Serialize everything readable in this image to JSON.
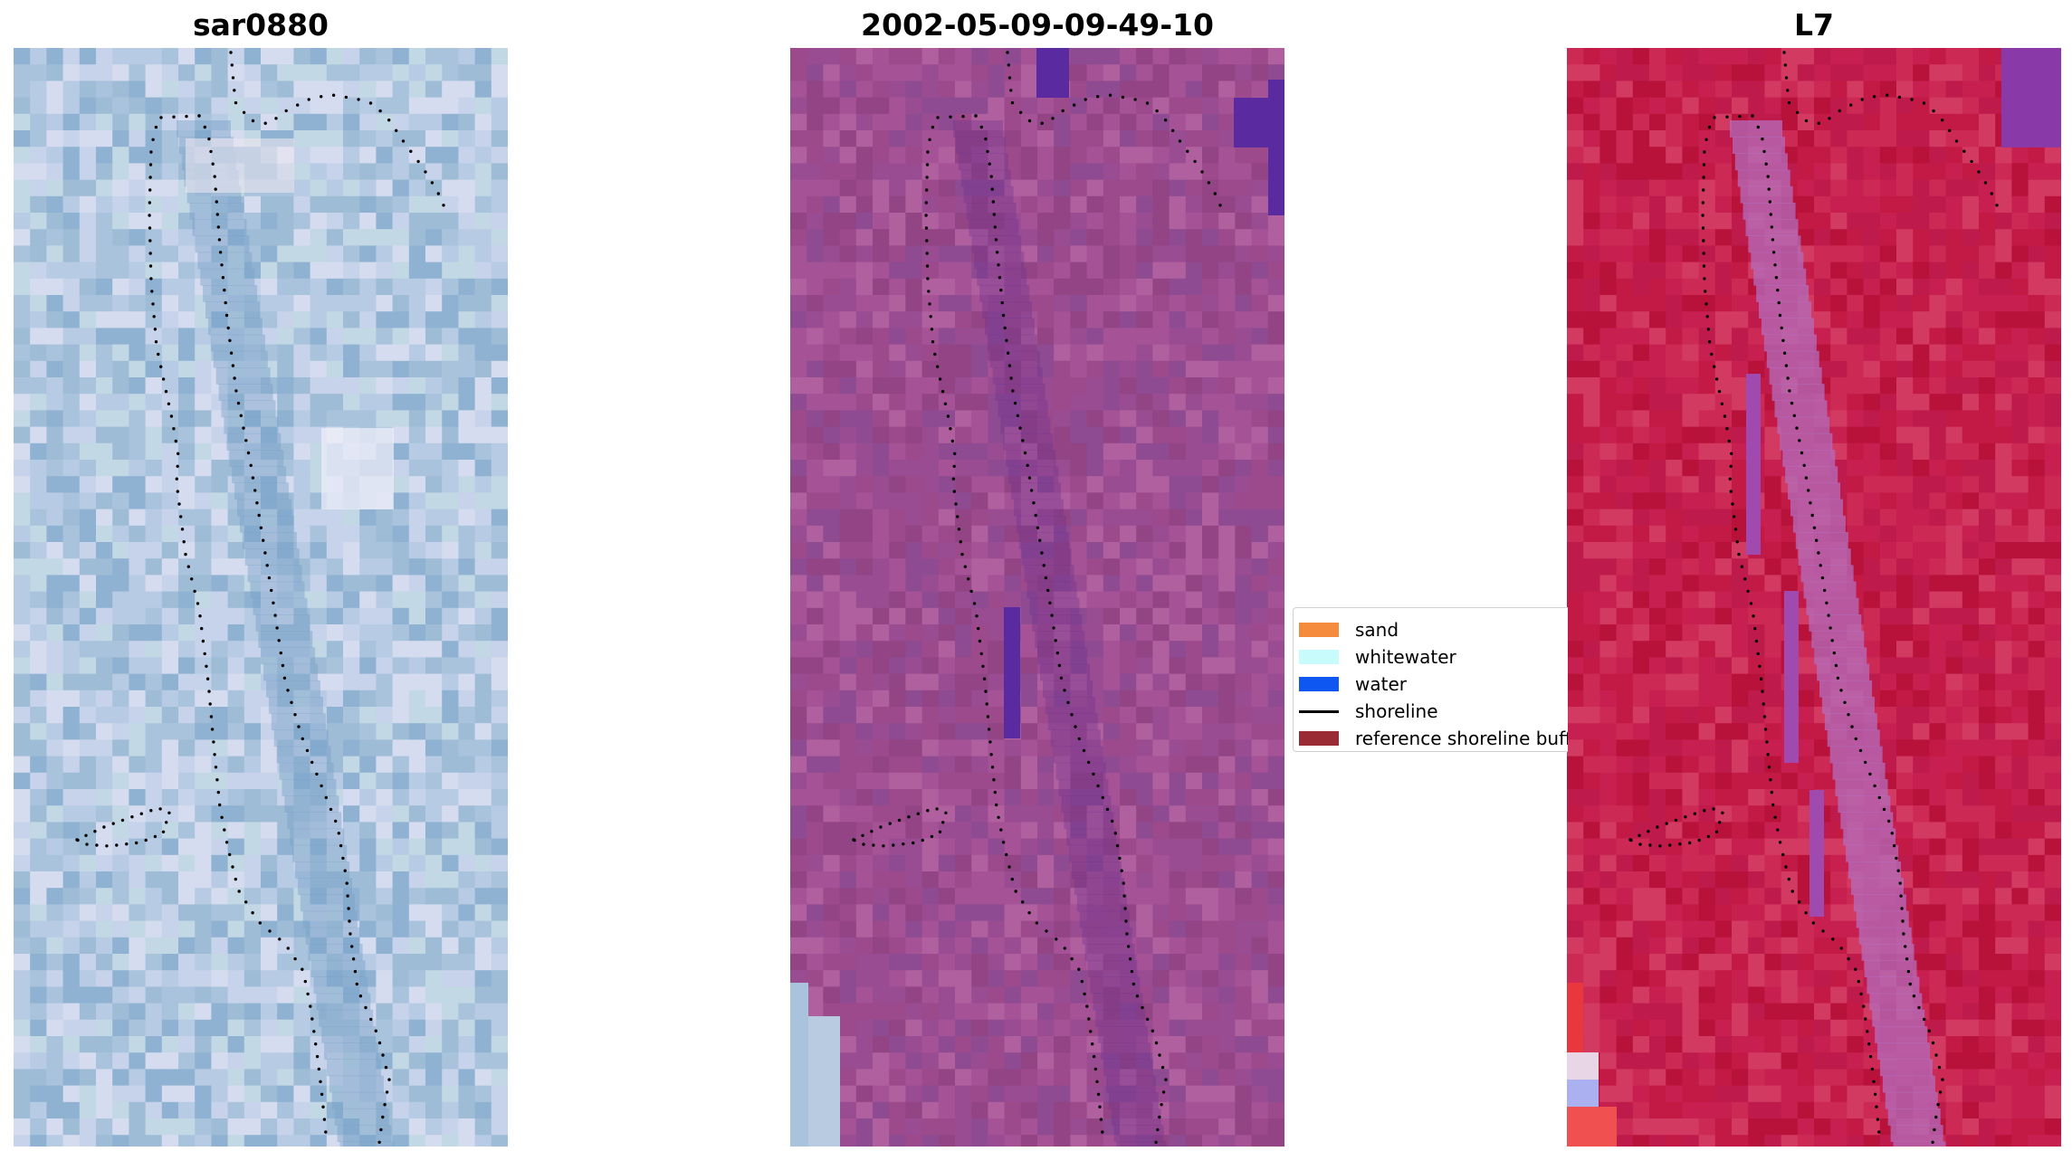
{
  "panels": [
    {
      "title": "sar0880",
      "palette": [
        "#9fbcd6",
        "#b7cbe4",
        "#c6d3ea",
        "#a9c3dc",
        "#d6dcef",
        "#8fb2d2",
        "#c2d8e4"
      ]
    },
    {
      "title": "2002-05-09-09-49-10",
      "palette": [
        "#9c4a8c",
        "#a55296",
        "#924485",
        "#b0609e",
        "#9a4c93",
        "#8e4b92"
      ]
    },
    {
      "title": "L7",
      "palette": [
        "#c31a45",
        "#cc2a55",
        "#b8123a",
        "#d33a62",
        "#c72050",
        "#be1a4b"
      ]
    }
  ],
  "legend": {
    "items": [
      {
        "label": "sand",
        "type": "patch",
        "color": "#f58b3c"
      },
      {
        "label": "whitewater",
        "type": "patch",
        "color": "#c8fbfb"
      },
      {
        "label": "water",
        "type": "patch",
        "color": "#0e57f0"
      },
      {
        "label": "shoreline",
        "type": "line",
        "color": "#000000"
      },
      {
        "label": "reference shoreline buffer",
        "type": "patch",
        "color": "#9a2a33"
      }
    ]
  }
}
